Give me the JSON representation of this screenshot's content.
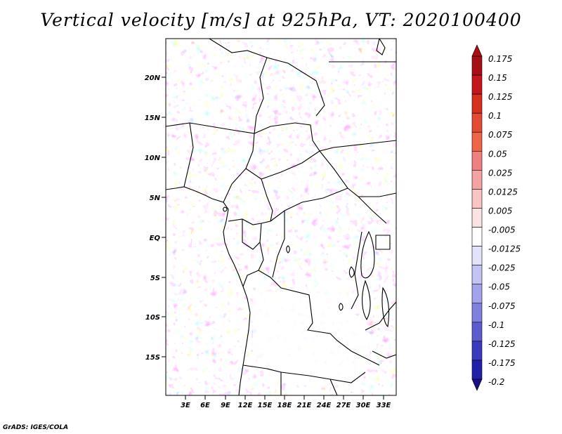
{
  "title": "Vertical velocity [m/s] at 925hPa, VT: 2020100400",
  "credit": "GrADS: IGES/COLA",
  "map": {
    "lat_labels": [
      "20N",
      "15N",
      "10N",
      "5N",
      "EQ",
      "5S",
      "10S",
      "15S"
    ],
    "lon_labels": [
      "3E",
      "6E",
      "9E",
      "12E",
      "15E",
      "18E",
      "21E",
      "24E",
      "27E",
      "30E",
      "33E"
    ]
  },
  "colorbar": {
    "labels": [
      "0.175",
      "0.15",
      "0.125",
      "0.1",
      "0.075",
      "0.05",
      "0.025",
      "0.0125",
      "0.005",
      "-0.005",
      "-0.0125",
      "-0.025",
      "-0.05",
      "-0.075",
      "-0.1",
      "-0.125",
      "-0.175",
      "-0.2"
    ],
    "colors": [
      "#a50f15",
      "#c4161c",
      "#d7301f",
      "#e34a33",
      "#ef6548",
      "#f08080",
      "#f4a3a3",
      "#f8c4c4",
      "#fce3e3",
      "#ffffff",
      "#e3e3fc",
      "#c4c4f4",
      "#a3a3ec",
      "#8080e0",
      "#5c5cd0",
      "#3a3abf",
      "#2020a8",
      "#1a0f85"
    ]
  }
}
